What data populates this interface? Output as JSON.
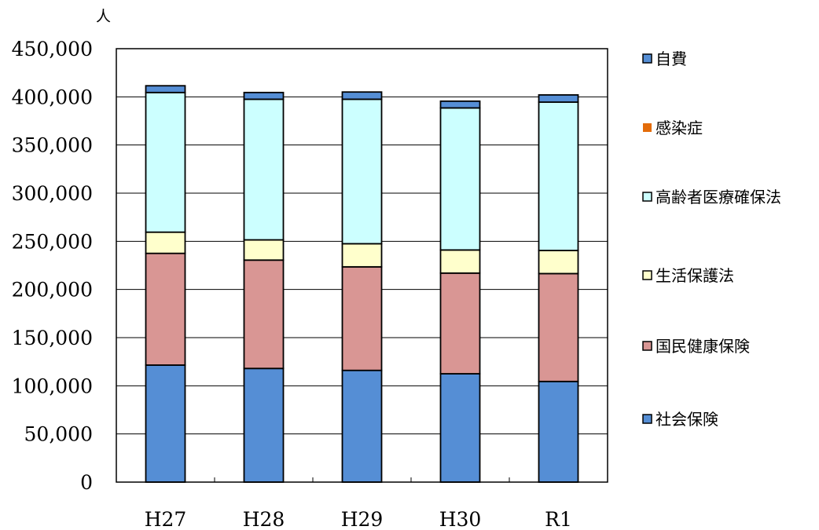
{
  "chart_data": {
    "type": "bar",
    "stacked": true,
    "title": "",
    "ylabel": "人",
    "ylim": [
      0,
      450000
    ],
    "y_ticks": [
      0,
      50000,
      100000,
      150000,
      200000,
      250000,
      300000,
      350000,
      400000,
      450000
    ],
    "y_tick_labels": [
      "0",
      "50,000",
      "100,000",
      "150,000",
      "200,000",
      "250,000",
      "300,000",
      "350,000",
      "400,000",
      "450,000"
    ],
    "categories": [
      "H27",
      "H28",
      "H29",
      "H30",
      "R1"
    ],
    "grid": true,
    "legend_position": "right",
    "series": [
      {
        "name": "社会保険",
        "color": "#558ED5",
        "values": [
          121500,
          118000,
          116000,
          112500,
          104500
        ]
      },
      {
        "name": "国民健康保険",
        "color": "#D99694",
        "values": [
          116000,
          112500,
          107500,
          104500,
          112000
        ]
      },
      {
        "name": "生活保護法",
        "color": "#FFFFCC",
        "values": [
          22000,
          21000,
          24000,
          24000,
          24000
        ]
      },
      {
        "name": "高齢者医療確保法",
        "color": "#CCFFFF",
        "values": [
          145000,
          146000,
          150000,
          147500,
          154000
        ]
      },
      {
        "name": "感染症",
        "color": "#E36C0A",
        "values": [
          0,
          0,
          0,
          0,
          0
        ]
      },
      {
        "name": "自費",
        "color": "#558ED5",
        "values": [
          7000,
          7000,
          7500,
          7000,
          7500
        ]
      }
    ]
  }
}
